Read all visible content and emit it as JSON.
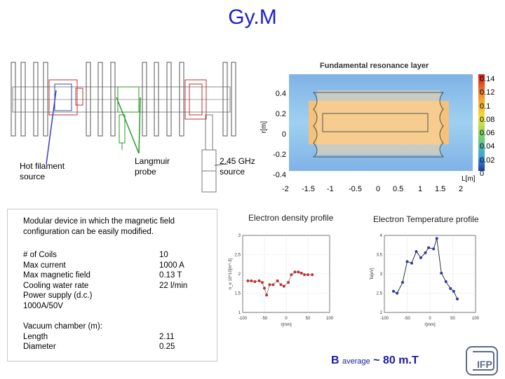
{
  "title": "Gy.M",
  "labels": {
    "hot_filament": "Hot filament source",
    "langmuir": "Langmuir probe",
    "ghz_source": "2.45 GHz source"
  },
  "resonance_plot": {
    "title": "Fundamental resonance layer",
    "xlabel": "L[m]",
    "ylabel": "r[m]",
    "x_ticks": [
      "-2",
      "-1.5",
      "-1",
      "-0.5",
      "0",
      "0.5",
      "1",
      "1.5",
      "2"
    ],
    "y_ticks": [
      "0.4",
      "0.2",
      "0",
      "-0.2",
      "-0.4"
    ],
    "colorbar_ticks": [
      "0.14",
      "0.12",
      "0.1",
      "0.08",
      "0.06",
      "0.04",
      "0.02",
      "0"
    ]
  },
  "specs": {
    "description": "Modular device in which the magnetic field configuration can be easily modified.",
    "rows": [
      {
        "label": "# of Coils",
        "value": "10"
      },
      {
        "label": "Max current",
        "value": "1000 A"
      },
      {
        "label": "Max magnetic field",
        "value": "0.13 T"
      },
      {
        "label": "Cooling water rate",
        "value": "22 l/min"
      },
      {
        "label": "Power supply (d.c.)",
        "value": ""
      },
      {
        "label": "1000A/50V",
        "value": ""
      }
    ],
    "vacuum_title": "Vacuum chamber (m):",
    "vacuum_rows": [
      {
        "label": "Length",
        "value": "2.11"
      },
      {
        "label": "Diameter",
        "value": "0.25"
      }
    ]
  },
  "chart_data": [
    {
      "type": "scatter",
      "title": "Electron density profile",
      "xlabel": "r[mm]",
      "ylabel": "n_e 10^10[m^-3]",
      "xlim": [
        -100,
        100
      ],
      "ylim": [
        1,
        3
      ],
      "x_ticks": [
        "-100",
        "-50",
        "0",
        "50",
        "100"
      ],
      "y_ticks": [
        "1",
        "1.5",
        "2",
        "2.5",
        "3"
      ],
      "x": [
        -88,
        -80,
        -72,
        -62,
        -55,
        -50,
        -45,
        -38,
        -30,
        -20,
        -12,
        -5,
        5,
        12,
        20,
        28,
        35,
        42,
        50,
        60
      ],
      "y": [
        1.82,
        1.82,
        1.8,
        1.82,
        1.78,
        1.63,
        1.45,
        1.72,
        1.72,
        1.82,
        1.72,
        1.68,
        1.78,
        1.98,
        2.05,
        2.05,
        2.02,
        1.98,
        1.98,
        1.98
      ]
    },
    {
      "type": "scatter",
      "title": "Electron Temperature profile",
      "xlabel": "r[mm]",
      "ylabel": "Te[eV]",
      "xlim": [
        -100,
        100
      ],
      "ylim": [
        2,
        4
      ],
      "x_ticks": [
        "-100",
        "-50",
        "0",
        "50",
        "100"
      ],
      "y_ticks": [
        "2",
        "2.5",
        "3",
        "3.5",
        "4"
      ],
      "x": [
        -80,
        -72,
        -60,
        -50,
        -40,
        -30,
        -20,
        -10,
        -3,
        8,
        15,
        25,
        35,
        45,
        52,
        60
      ],
      "y": [
        2.55,
        2.5,
        2.78,
        3.32,
        3.28,
        3.58,
        3.42,
        3.55,
        3.68,
        3.65,
        3.92,
        3.02,
        2.8,
        2.62,
        2.55,
        2.35
      ]
    }
  ],
  "b_average": {
    "b": "B",
    "sub": "average",
    "rest": "~ 80 m.T"
  },
  "logo_text": "IFP"
}
